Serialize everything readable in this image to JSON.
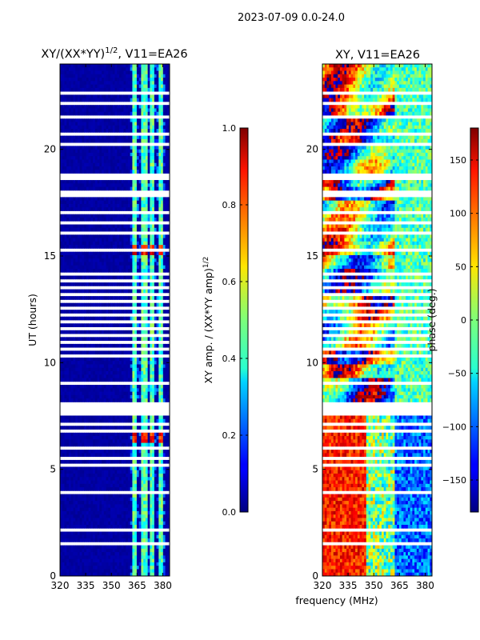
{
  "suptitle": "2023-07-09 0.0-24.0",
  "chart_data": [
    {
      "type": "heatmap",
      "title_main": "XY/(XX*YY)",
      "title_sup": "1/2",
      "title_tail": ", V11=EA26",
      "xlabel": "",
      "ylabel": "UT (hours)",
      "xlim": [
        320,
        384
      ],
      "ylim": [
        0,
        24
      ],
      "xticks": [
        320,
        335,
        350,
        365,
        380
      ],
      "yticks": [
        0,
        5,
        10,
        15,
        20
      ],
      "quantity": "amplitude",
      "colorbar": {
        "label_main": "XY amp. / (XX*YY amp)",
        "label_sup": "1/2",
        "range": [
          0.0,
          1.0
        ],
        "ticks": [
          0.0,
          0.2,
          0.4,
          0.6,
          0.8,
          1.0
        ],
        "tick_labels": [
          "0.0",
          "0.2",
          "0.4",
          "0.6",
          "0.8",
          "1.0"
        ]
      }
    },
    {
      "type": "heatmap",
      "title": "XY, V11=EA26",
      "xlabel": "frequency (MHz)",
      "ylabel": "",
      "xlim": [
        320,
        384
      ],
      "ylim": [
        0,
        24
      ],
      "xticks": [
        320,
        335,
        350,
        365,
        380
      ],
      "yticks": [
        0,
        5,
        10,
        15,
        20
      ],
      "quantity": "phase",
      "colorbar": {
        "label": "phase (deg.)",
        "range": [
          -180,
          180
        ],
        "ticks": [
          -150,
          -100,
          -50,
          0,
          50,
          100,
          150
        ],
        "tick_labels": [
          "−150",
          "−100",
          "−50",
          "0",
          "50",
          "100",
          "150"
        ]
      }
    }
  ]
}
